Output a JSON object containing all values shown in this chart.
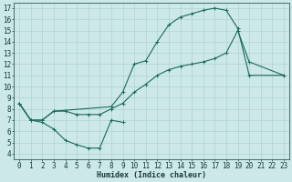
{
  "xlabel": "Humidex (Indice chaleur)",
  "bg_color": "#cce8e8",
  "grid_color": "#aacccc",
  "line_color": "#1a6b5a",
  "xlim": [
    -0.5,
    23.5
  ],
  "ylim": [
    3.5,
    17.5
  ],
  "xticks": [
    0,
    1,
    2,
    3,
    4,
    5,
    6,
    7,
    8,
    9,
    10,
    11,
    12,
    13,
    14,
    15,
    16,
    17,
    18,
    19,
    20,
    21,
    22,
    23
  ],
  "yticks": [
    4,
    5,
    6,
    7,
    8,
    9,
    10,
    11,
    12,
    13,
    14,
    15,
    16,
    17
  ],
  "line1_x": [
    0,
    1,
    2,
    3,
    8,
    9,
    10,
    11,
    12,
    13,
    14,
    15,
    16,
    17,
    18,
    19,
    20,
    23
  ],
  "line1_y": [
    8.5,
    7.0,
    7.0,
    7.8,
    8.2,
    9.5,
    12.0,
    12.3,
    14.0,
    15.5,
    16.2,
    16.5,
    16.8,
    17.0,
    16.8,
    15.2,
    11.0,
    11.0
  ],
  "line2_x": [
    0,
    1,
    2,
    3,
    4,
    5,
    6,
    7,
    8,
    9
  ],
  "line2_y": [
    8.5,
    7.0,
    6.8,
    6.2,
    5.2,
    4.8,
    4.5,
    4.5,
    7.0,
    6.8
  ],
  "line3_x": [
    0,
    1,
    2,
    3,
    4,
    5,
    6,
    7,
    8,
    9,
    10,
    11,
    12,
    13,
    14,
    15,
    16,
    17,
    18,
    19,
    20,
    23
  ],
  "line3_y": [
    8.5,
    7.0,
    7.0,
    7.8,
    7.8,
    7.5,
    7.5,
    7.5,
    8.0,
    8.5,
    9.5,
    10.2,
    11.0,
    11.5,
    11.8,
    12.0,
    12.2,
    12.5,
    13.0,
    15.0,
    12.2,
    11.0
  ],
  "tick_fontsize": 5.5,
  "xlabel_fontsize": 6.0
}
